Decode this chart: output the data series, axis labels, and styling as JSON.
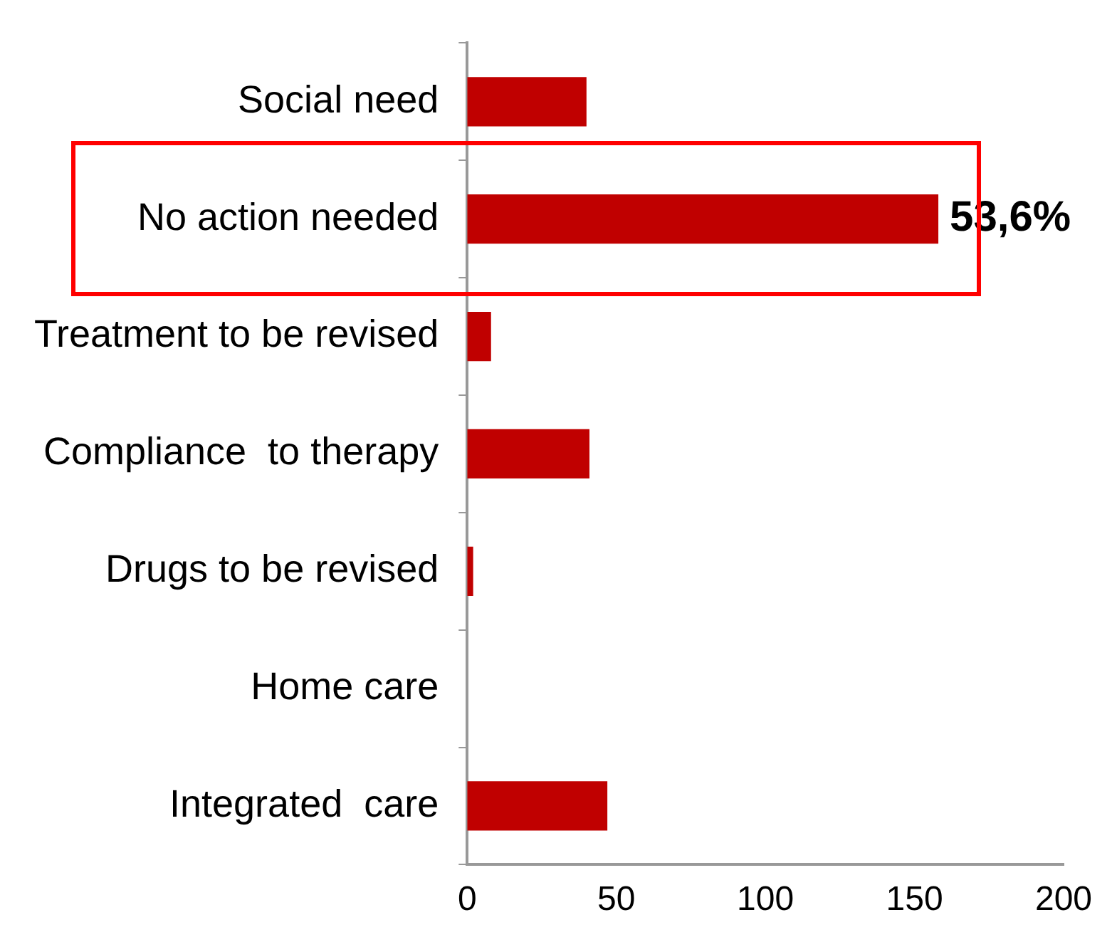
{
  "chart_data": {
    "type": "bar",
    "orientation": "horizontal",
    "categories": [
      "Social need",
      "No action needed",
      "Treatment to be revised",
      "Compliance  to therapy",
      "Drugs to be revised",
      "Home care",
      "Integrated  care"
    ],
    "values": [
      40,
      158,
      8,
      41,
      2,
      0,
      47
    ],
    "color": "#c00000",
    "xlim": [
      0,
      200
    ],
    "xticks": [
      0,
      50,
      100,
      150,
      200
    ],
    "grid": false,
    "legend": false,
    "annotations": [
      {
        "text": "53,6%",
        "x": 158,
        "y": "No action needed"
      }
    ]
  }
}
